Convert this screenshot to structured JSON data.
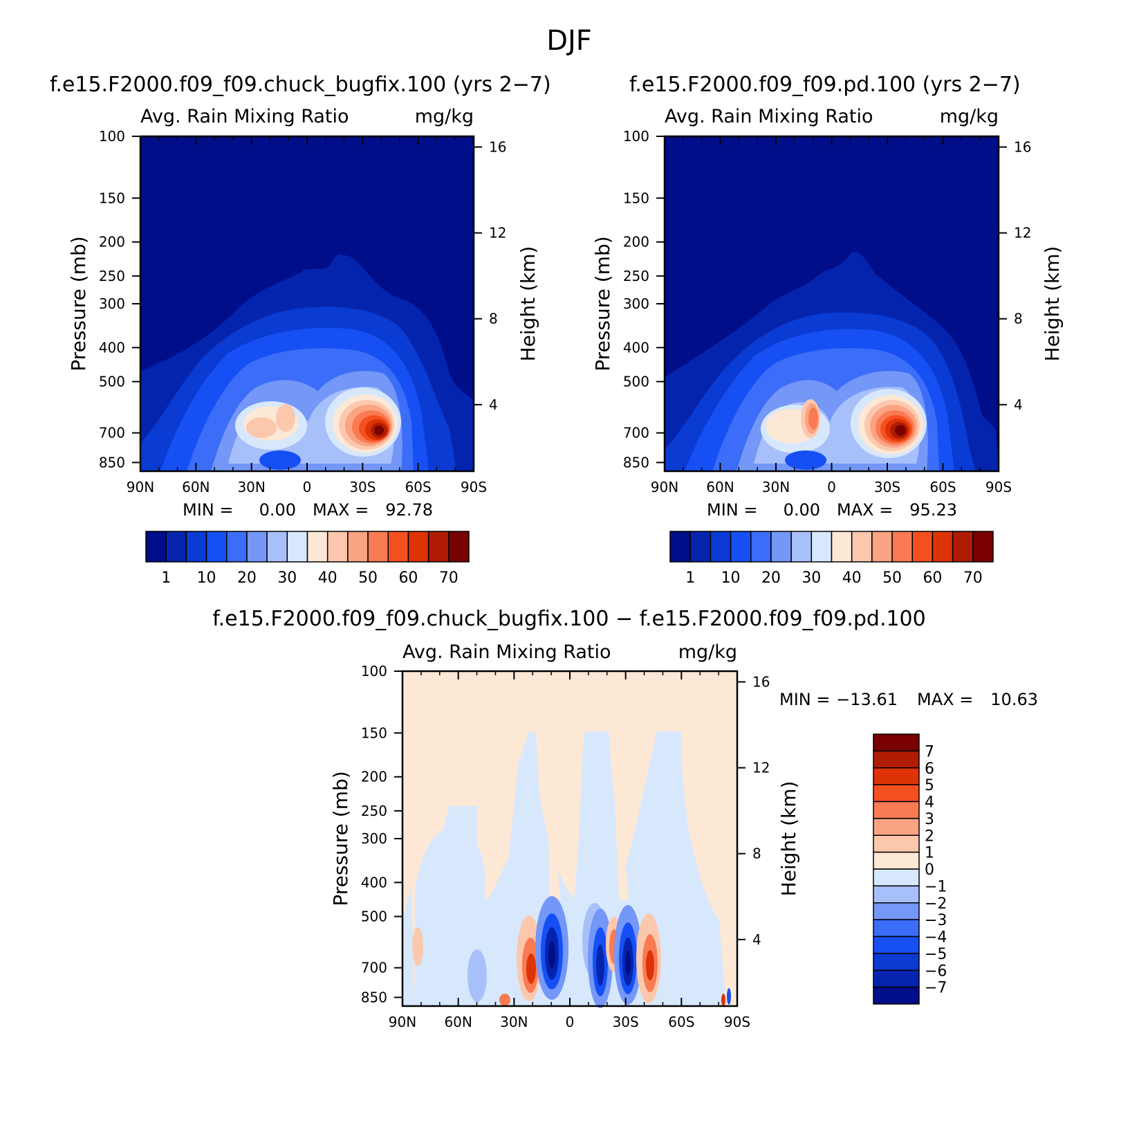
{
  "figure": {
    "title": "DJF"
  },
  "chart_data": [
    {
      "type": "heatmap",
      "title": "f.e15.F2000.f09_f09.chuck_bugfix.100 (yrs 2−7)",
      "subtitle_left": "Avg. Rain Mixing Ratio",
      "subtitle_right": "mg/kg",
      "ylabel": "Pressure (mb)",
      "y2label": "Height (km)",
      "x_ticks": [
        "90N",
        "60N",
        "30N",
        "0",
        "30S",
        "60S",
        "90S"
      ],
      "y_ticks": [
        "100",
        "150",
        "200",
        "250",
        "300",
        "400",
        "500",
        "700",
        "850"
      ],
      "y2_ticks": [
        "16",
        "12",
        "8",
        "4"
      ],
      "xlim": [
        90,
        -90
      ],
      "ylim": [
        900,
        100
      ],
      "y_scale": "log",
      "stats": {
        "min_label": "MIN =",
        "min": "0.00",
        "max_label": "MAX =",
        "max": "92.78"
      },
      "colorbar": {
        "orientation": "horizontal",
        "labels": [
          "1",
          "10",
          "20",
          "30",
          "40",
          "50",
          "60",
          "70"
        ],
        "colors": [
          "#000e8a",
          "#0524ad",
          "#0a3bd2",
          "#1650f5",
          "#3c6df8",
          "#7497f8",
          "#a8c0fa",
          "#d7e8fc",
          "#fde8d6",
          "#fbc8ae",
          "#faa483",
          "#f97b53",
          "#f5501f",
          "#dd3306",
          "#b01c03",
          "#7a0102"
        ]
      },
      "features": [
        {
          "lat": -35,
          "p": 700,
          "value": 92.78
        },
        {
          "lat": 28,
          "p": 690,
          "value": 45
        },
        {
          "lat": 15,
          "p": 670,
          "value": 40
        }
      ]
    },
    {
      "type": "heatmap",
      "title": "f.e15.F2000.f09_f09.pd.100 (yrs 2−7)",
      "subtitle_left": "Avg. Rain Mixing Ratio",
      "subtitle_right": "mg/kg",
      "ylabel": "Pressure (mb)",
      "y2label": "Height (km)",
      "x_ticks": [
        "90N",
        "60N",
        "30N",
        "0",
        "30S",
        "60S",
        "90S"
      ],
      "y_ticks": [
        "100",
        "150",
        "200",
        "250",
        "300",
        "400",
        "500",
        "700",
        "850"
      ],
      "y2_ticks": [
        "16",
        "12",
        "8",
        "4"
      ],
      "xlim": [
        90,
        -90
      ],
      "ylim": [
        900,
        100
      ],
      "y_scale": "log",
      "stats": {
        "min_label": "MIN =",
        "min": "0.00",
        "max_label": "MAX =",
        "max": "95.23"
      },
      "colorbar": {
        "orientation": "horizontal",
        "labels": [
          "1",
          "10",
          "20",
          "30",
          "40",
          "50",
          "60",
          "70"
        ],
        "colors": [
          "#000e8a",
          "#0524ad",
          "#0a3bd2",
          "#1650f5",
          "#3c6df8",
          "#7497f8",
          "#a8c0fa",
          "#d7e8fc",
          "#fde8d6",
          "#fbc8ae",
          "#faa483",
          "#f97b53",
          "#f5501f",
          "#dd3306",
          "#b01c03",
          "#7a0102"
        ]
      },
      "features": [
        {
          "lat": -35,
          "p": 700,
          "value": 95.23
        },
        {
          "lat": 10,
          "p": 670,
          "value": 55
        }
      ]
    },
    {
      "type": "heatmap",
      "title": "f.e15.F2000.f09_f09.chuck_bugfix.100 − f.e15.F2000.f09_f09.pd.100",
      "subtitle_left": "Avg. Rain Mixing Ratio",
      "subtitle_right": "mg/kg",
      "ylabel": "Pressure (mb)",
      "y2label": "Height (km)",
      "x_ticks": [
        "90N",
        "60N",
        "30N",
        "0",
        "30S",
        "60S",
        "90S"
      ],
      "y_ticks": [
        "100",
        "150",
        "200",
        "250",
        "300",
        "400",
        "500",
        "700",
        "850"
      ],
      "y2_ticks": [
        "16",
        "12",
        "8",
        "4"
      ],
      "xlim": [
        90,
        -90
      ],
      "ylim": [
        900,
        100
      ],
      "y_scale": "log",
      "stats": {
        "min_label": "MIN =",
        "min": "−13.61",
        "max_label": "MAX =",
        "max": "10.63"
      },
      "colorbar": {
        "orientation": "vertical",
        "labels": [
          "7",
          "6",
          "5",
          "4",
          "3",
          "2",
          "1",
          "0",
          "−1",
          "−2",
          "−3",
          "−4",
          "−5",
          "−6",
          "−7"
        ],
        "colors": [
          "#7a0102",
          "#b01c03",
          "#dd3306",
          "#f5501f",
          "#f97b53",
          "#faa483",
          "#fbc8ae",
          "#fde8d6",
          "#d7e8fc",
          "#a8c0fa",
          "#7497f8",
          "#3c6df8",
          "#1650f5",
          "#0a3bd2",
          "#0524ad",
          "#000e8a"
        ]
      },
      "features": [
        {
          "lat": 23,
          "p": 680,
          "value": 7
        },
        {
          "lat": 10,
          "p": 640,
          "value": -8
        },
        {
          "lat": -12,
          "p": 650,
          "value": -6
        },
        {
          "lat": -20,
          "p": 620,
          "value": 5
        },
        {
          "lat": -28,
          "p": 680,
          "value": -8
        },
        {
          "lat": -42,
          "p": 670,
          "value": 5
        }
      ]
    }
  ]
}
